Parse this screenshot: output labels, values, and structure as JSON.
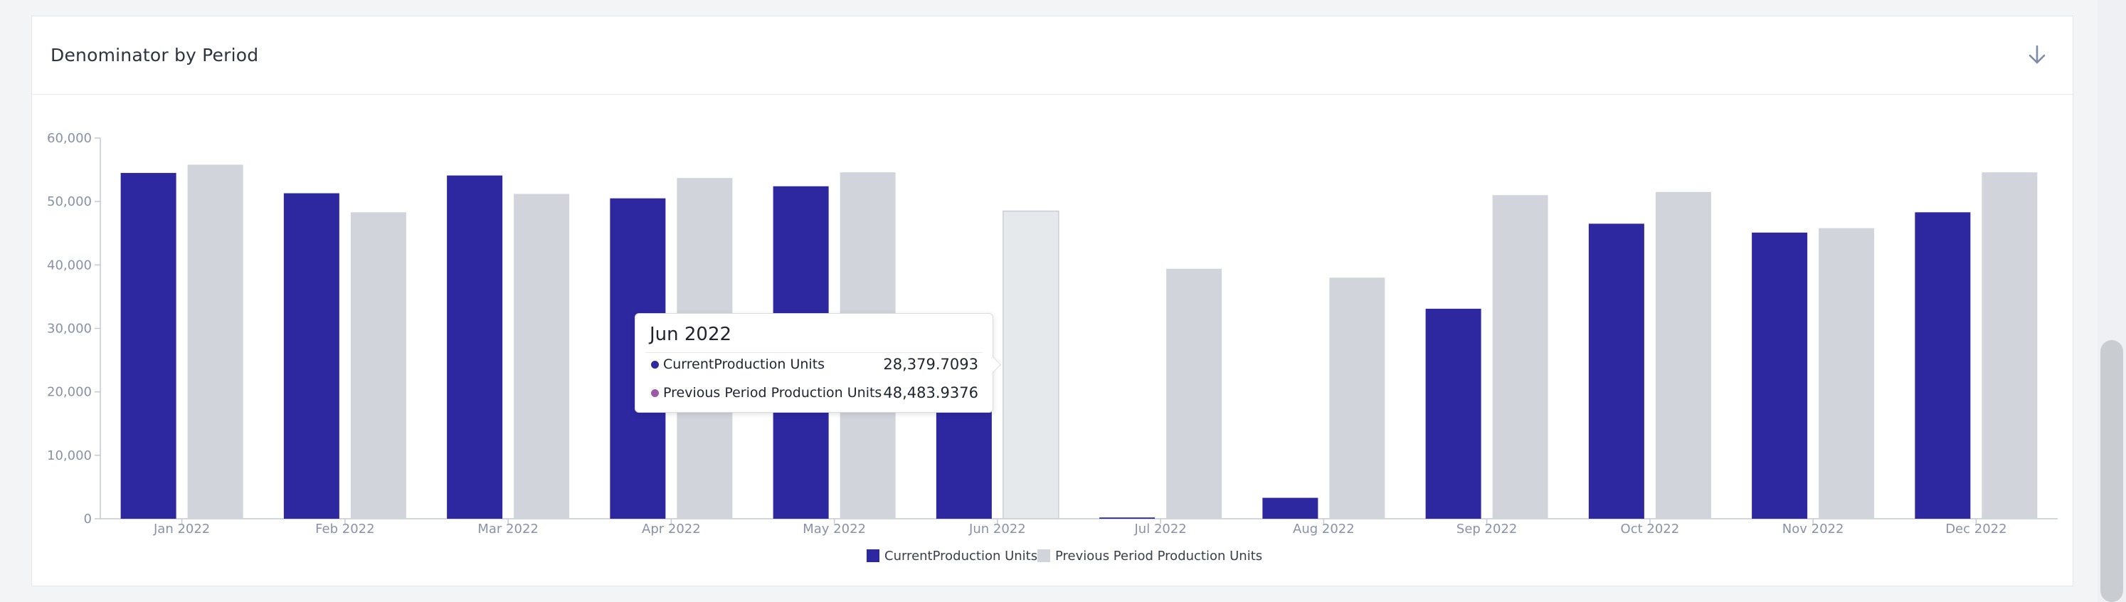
{
  "card": {
    "title": "Denominator by Period",
    "download_icon": "arrow-down-icon"
  },
  "tooltip": {
    "title": "Jun 2022",
    "rows": [
      {
        "label": "CurrentProduction Units",
        "value": "28,379.7093",
        "dot_color": "#2e2a9e"
      },
      {
        "label": "Previous Period Production Units",
        "value": "48,483.9376",
        "dot_color": "#9b59a6"
      }
    ]
  },
  "colors": {
    "current": "#2e28a0",
    "previous": "#d1d5db",
    "previous_highlight": "#e6e9ec",
    "axis_text": "#8892a6"
  },
  "chart_data": {
    "type": "bar",
    "title": "Denominator by Period",
    "categories": [
      "Jan 2022",
      "Feb 2022",
      "Mar 2022",
      "Apr 2022",
      "May 2022",
      "Jun 2022",
      "Jul 2022",
      "Aug 2022",
      "Sep 2022",
      "Oct 2022",
      "Nov 2022",
      "Dec 2022"
    ],
    "series": [
      {
        "name": "CurrentProduction Units",
        "values": [
          54500,
          51300,
          54100,
          50500,
          52400,
          28379.7093,
          200,
          3300,
          33100,
          46500,
          45100,
          48300
        ]
      },
      {
        "name": "Previous Period Production Units",
        "values": [
          55800,
          48300,
          51200,
          53700,
          54600,
          48483.9376,
          39400,
          38000,
          51000,
          51500,
          45800,
          54600
        ]
      }
    ],
    "ylim": [
      0,
      60000
    ],
    "yticks": [
      "0",
      "10,000",
      "20,000",
      "30,000",
      "40,000",
      "50,000",
      "60,000"
    ],
    "grid": false,
    "legend": "bottom-center"
  }
}
